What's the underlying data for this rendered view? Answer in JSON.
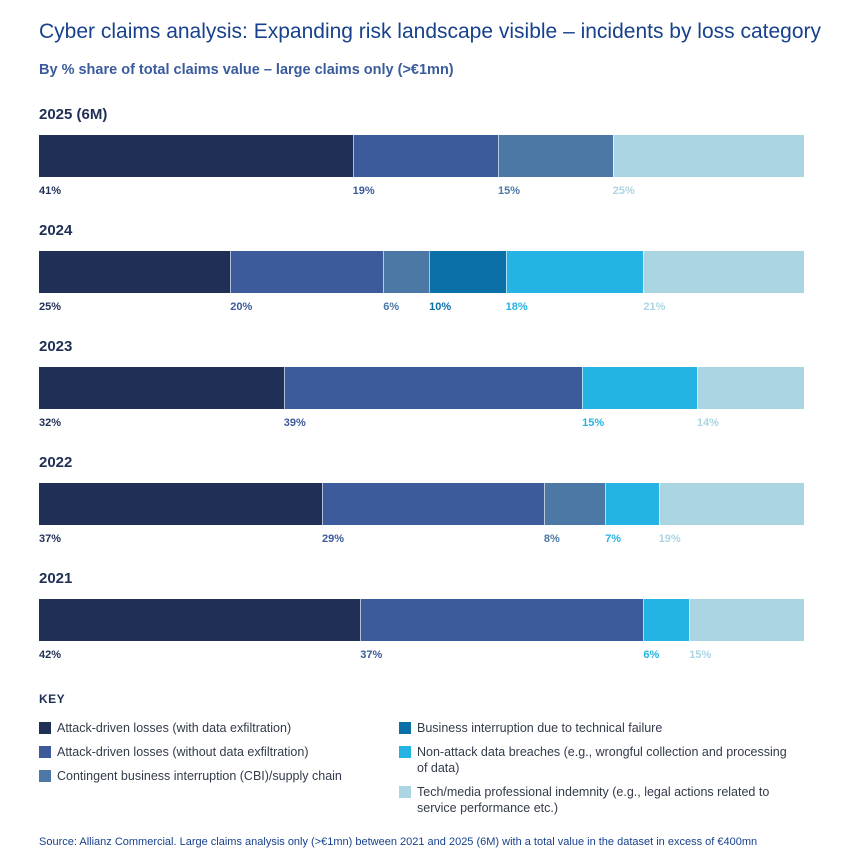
{
  "title": "Cyber claims analysis: Expanding risk landscape visible – incidents by loss category",
  "subtitle": "By % share of total claims value – large claims only (>€1mn)",
  "chart_data": {
    "type": "bar",
    "orientation": "horizontal",
    "stacked": true,
    "normalized": "percent",
    "title": "Cyber claims analysis: Expanding risk landscape visible – incidents by loss category",
    "subtitle": "By % share of total claims value – large claims only (>€1mn)",
    "categories": [
      "2025 (6M)",
      "2024",
      "2023",
      "2022",
      "2021"
    ],
    "series": [
      {
        "name": "Attack-driven losses (with data exfiltration)",
        "color": "#1f2f56",
        "values": [
          41,
          25,
          32,
          37,
          42
        ]
      },
      {
        "name": "Attack-driven losses (without data exfiltration)",
        "color": "#3d5a9a",
        "values": [
          19,
          20,
          39,
          29,
          37
        ]
      },
      {
        "name": "Contingent business interruption (CBI)/supply chain",
        "color": "#4b78a5",
        "values": [
          15,
          6,
          0,
          8,
          0
        ]
      },
      {
        "name": "Business interruption due to technical failure",
        "color": "#0b70a8",
        "values": [
          0,
          10,
          0,
          0,
          0
        ]
      },
      {
        "name": "Non-attack data breaches (e.g., wrongful collection and processing of data)",
        "color": "#25b3e3",
        "values": [
          0,
          18,
          15,
          7,
          6
        ]
      },
      {
        "name": "Tech/media professional indemnity (e.g., legal actions related to service performance etc.)",
        "color": "#acd5e3",
        "values": [
          25,
          21,
          14,
          19,
          15
        ]
      }
    ],
    "label_colors": [
      "#1f2f56",
      "#3d5a9a",
      "#4b78a5",
      "#0b70a8",
      "#25b3e3",
      "#acd5e3"
    ],
    "xlim": [
      0,
      100
    ]
  },
  "key": {
    "heading": "KEY",
    "items": [
      {
        "label": "Attack-driven losses (with data exfiltration)",
        "color": "#1f2f56"
      },
      {
        "label": "Attack-driven losses (without data exfiltration)",
        "color": "#3d5a9a"
      },
      {
        "label": "Contingent business interruption (CBI)/supply chain",
        "color": "#4b78a5"
      },
      {
        "label": "Business interruption due to technical failure",
        "color": "#0b70a8"
      },
      {
        "label": "Non-attack data breaches (e.g., wrongful collection and processing of data)",
        "color": "#25b3e3"
      },
      {
        "label": "Tech/media professional indemnity (e.g., legal actions related to service performance etc.)",
        "color": "#acd5e3"
      }
    ]
  },
  "source": "Source: Allianz Commercial. Large claims analysis only (>€1mn) between 2021 and 2025 (6M) with a total value in the dataset in excess of €400mn"
}
